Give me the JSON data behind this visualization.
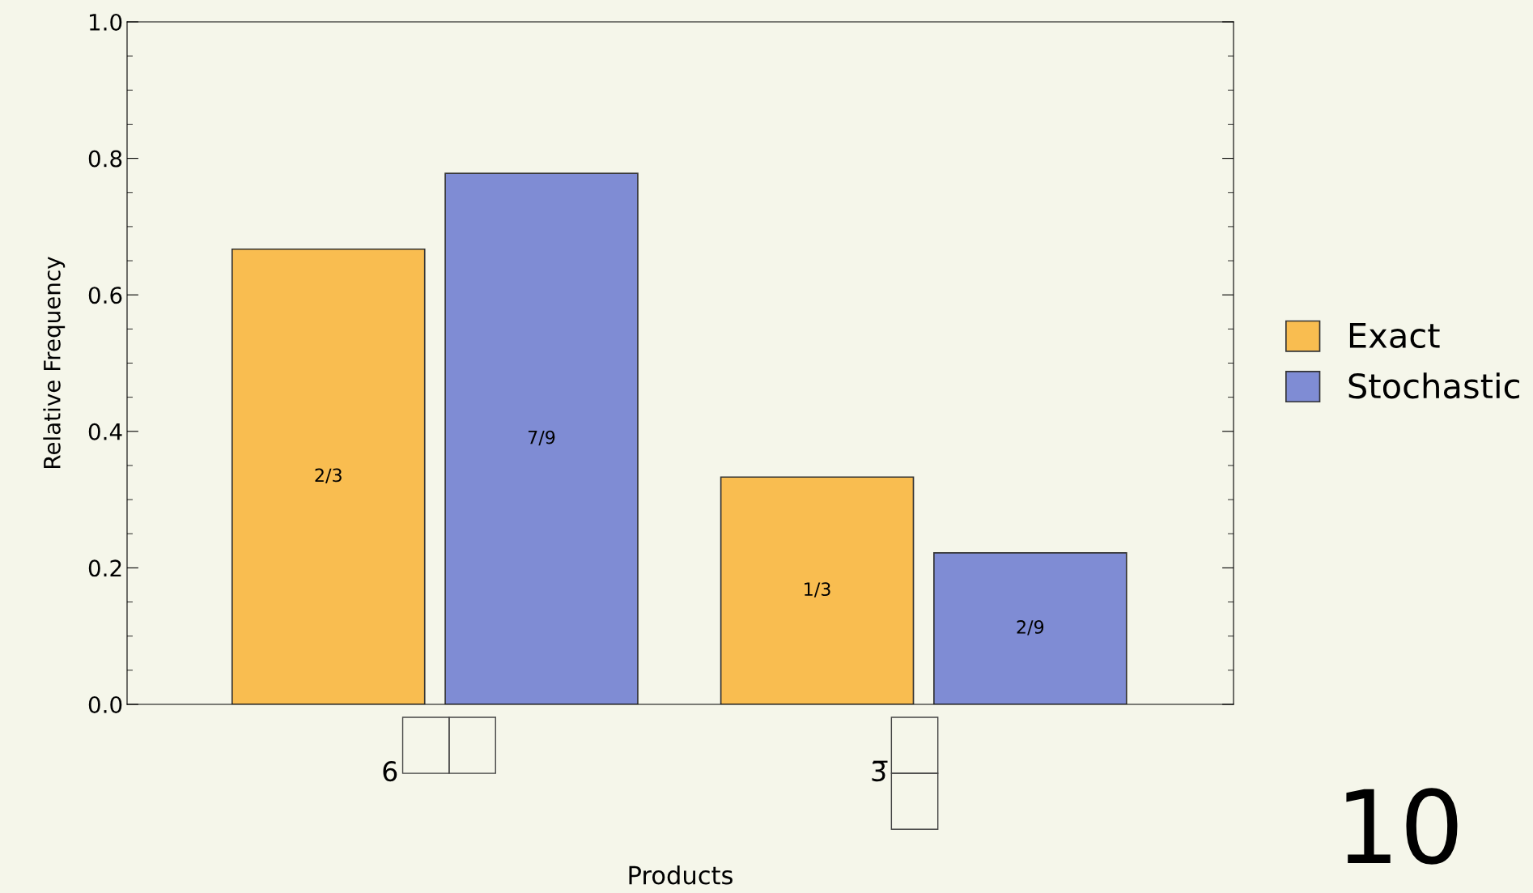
{
  "chart_data": {
    "type": "bar",
    "xlabel": "Products",
    "ylabel": "Relative Frequency",
    "categories": [
      "6",
      "3̅"
    ],
    "series": [
      {
        "name": "Exact",
        "color": "#f9bd50",
        "values": [
          0.667,
          0.333
        ],
        "value_labels": [
          "2/3",
          "1/3"
        ]
      },
      {
        "name": "Stochastic",
        "color": "#7f8cd4",
        "values": [
          0.778,
          0.222
        ],
        "value_labels": [
          "7/9",
          "2/9"
        ]
      }
    ],
    "ylim": [
      0,
      1
    ],
    "yticks": [
      {
        "value": 0,
        "label": "0.0"
      },
      0.2,
      0.4,
      0.6,
      0.8,
      {
        "value": 1,
        "label": "1.0"
      }
    ],
    "legend": "right",
    "grid": false,
    "annotations": [
      "10"
    ]
  }
}
